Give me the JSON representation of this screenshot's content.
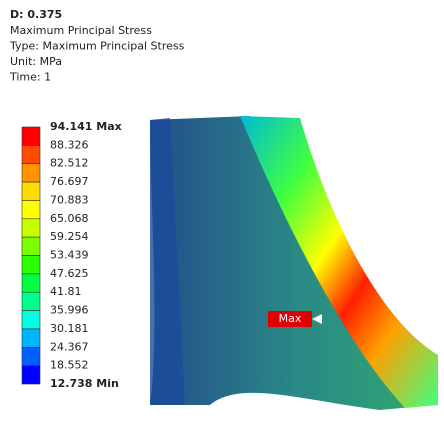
{
  "header": {
    "title": "D: 0.375",
    "lines": [
      "Maximum Principal Stress",
      "Type: Maximum Principal Stress",
      "Unit: MPa",
      "Time: 1"
    ]
  },
  "legend": {
    "labels": [
      "94.141 Max",
      "88.326",
      "82.512",
      "76.697",
      "70.883",
      "65.068",
      "59.254",
      "53.439",
      "47.625",
      "41.81",
      "35.996",
      "30.181",
      "24.367",
      "18.552",
      "12.738 Min"
    ],
    "colors": [
      "#ff0000",
      "#ff4a00",
      "#ff9400",
      "#ffdc00",
      "#ffff00",
      "#c8ff00",
      "#7cff00",
      "#2eff00",
      "#00ff40",
      "#00ff8c",
      "#00ffe0",
      "#00b4ff",
      "#0060ff",
      "#0000ff"
    ]
  },
  "model": {
    "max_label": "Max"
  }
}
